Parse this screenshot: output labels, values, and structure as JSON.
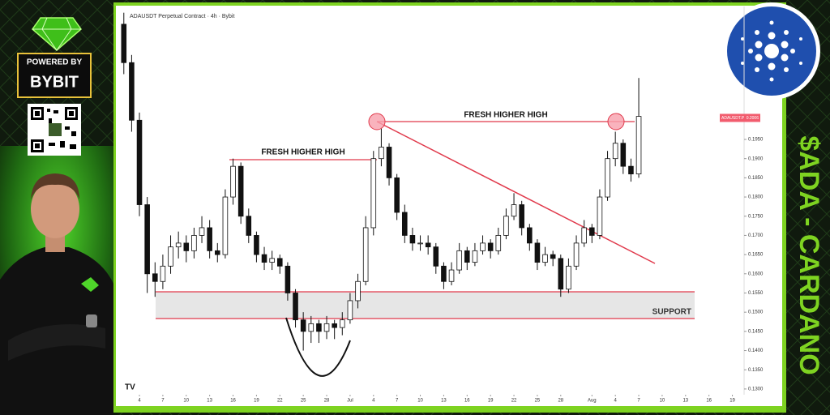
{
  "branding": {
    "powered_by": "POWERED BY",
    "brand": "BYBIT",
    "side_title": "$ADA - CARDANO"
  },
  "chart_data": {
    "type": "candlestick",
    "title": "ADAUSDT Perpetual Contract · 4h · Bybit",
    "color_up": "#ffffff",
    "color_down": "#111111",
    "annotations": [
      "FRESH HIGHER HIGH",
      "FRESH HIGHER HIGH",
      "SUPPORT"
    ],
    "price_tag": {
      "symbol": "ADAUSDT.P",
      "price": {
        "value": 0.2006,
        "label": "0.2006"
      }
    },
    "x": [
      1,
      2,
      3,
      4,
      5,
      6,
      7,
      8,
      9,
      10,
      11,
      12,
      13,
      14,
      15,
      16,
      17,
      18,
      19,
      20,
      21,
      22,
      23,
      24,
      25,
      26,
      27,
      28,
      29,
      30,
      31,
      32,
      33,
      34,
      35,
      36,
      37,
      38,
      39,
      40,
      41,
      42,
      43,
      44,
      45,
      46,
      47,
      48,
      49,
      50,
      51,
      52,
      53,
      54,
      55,
      56,
      57,
      58,
      59,
      60,
      61,
      62,
      63,
      64,
      65,
      66,
      67
    ],
    "open": [
      0.225,
      0.215,
      0.2,
      0.178,
      0.16,
      0.158,
      0.162,
      0.167,
      0.168,
      0.166,
      0.17,
      0.172,
      0.166,
      0.165,
      0.18,
      0.188,
      0.175,
      0.17,
      0.165,
      0.163,
      0.164,
      0.162,
      0.155,
      0.148,
      0.145,
      0.147,
      0.145,
      0.147,
      0.146,
      0.148,
      0.153,
      0.158,
      0.172,
      0.19,
      0.193,
      0.185,
      0.176,
      0.17,
      0.168,
      0.168,
      0.167,
      0.162,
      0.158,
      0.161,
      0.166,
      0.163,
      0.166,
      0.168,
      0.166,
      0.17,
      0.175,
      0.178,
      0.172,
      0.168,
      0.163,
      0.165,
      0.164,
      0.156,
      0.162,
      0.168,
      0.172,
      0.17,
      0.18,
      0.19,
      0.194,
      0.188,
      0.186
    ],
    "high": [
      0.228,
      0.217,
      0.202,
      0.18,
      0.163,
      0.165,
      0.17,
      0.171,
      0.17,
      0.172,
      0.175,
      0.174,
      0.168,
      0.182,
      0.19,
      0.189,
      0.177,
      0.171,
      0.167,
      0.166,
      0.165,
      0.163,
      0.156,
      0.15,
      0.149,
      0.148,
      0.149,
      0.148,
      0.15,
      0.155,
      0.16,
      0.175,
      0.192,
      0.198,
      0.194,
      0.186,
      0.178,
      0.172,
      0.17,
      0.17,
      0.168,
      0.163,
      0.163,
      0.168,
      0.167,
      0.168,
      0.17,
      0.169,
      0.172,
      0.177,
      0.181,
      0.179,
      0.173,
      0.169,
      0.167,
      0.166,
      0.165,
      0.164,
      0.17,
      0.174,
      0.173,
      0.182,
      0.192,
      0.197,
      0.195,
      0.19,
      0.211
    ],
    "low": [
      0.212,
      0.197,
      0.175,
      0.155,
      0.154,
      0.156,
      0.16,
      0.164,
      0.163,
      0.164,
      0.168,
      0.164,
      0.163,
      0.164,
      0.178,
      0.173,
      0.168,
      0.163,
      0.161,
      0.161,
      0.16,
      0.153,
      0.146,
      0.14,
      0.142,
      0.142,
      0.143,
      0.143,
      0.144,
      0.147,
      0.151,
      0.157,
      0.17,
      0.188,
      0.183,
      0.174,
      0.168,
      0.166,
      0.166,
      0.165,
      0.16,
      0.156,
      0.157,
      0.16,
      0.161,
      0.162,
      0.165,
      0.164,
      0.165,
      0.169,
      0.174,
      0.17,
      0.166,
      0.161,
      0.162,
      0.162,
      0.154,
      0.155,
      0.161,
      0.167,
      0.168,
      0.169,
      0.179,
      0.188,
      0.186,
      0.184,
      0.185
    ],
    "close": [
      0.215,
      0.2,
      0.178,
      0.16,
      0.158,
      0.162,
      0.167,
      0.168,
      0.166,
      0.17,
      0.172,
      0.166,
      0.165,
      0.18,
      0.188,
      0.175,
      0.17,
      0.165,
      0.163,
      0.164,
      0.162,
      0.155,
      0.148,
      0.145,
      0.147,
      0.145,
      0.147,
      0.146,
      0.148,
      0.153,
      0.158,
      0.172,
      0.19,
      0.193,
      0.185,
      0.176,
      0.17,
      0.168,
      0.168,
      0.167,
      0.162,
      0.158,
      0.161,
      0.166,
      0.163,
      0.166,
      0.168,
      0.166,
      0.17,
      0.175,
      0.178,
      0.172,
      0.168,
      0.163,
      0.165,
      0.164,
      0.156,
      0.162,
      0.168,
      0.172,
      0.17,
      0.18,
      0.19,
      0.194,
      0.188,
      0.186,
      0.201
    ],
    "xlim": [
      0.4,
      80.5
    ],
    "xticks": [
      {
        "value": 3,
        "label": "4"
      },
      {
        "value": 6,
        "label": "7"
      },
      {
        "value": 9,
        "label": "10"
      },
      {
        "value": 12,
        "label": "13"
      },
      {
        "value": 15,
        "label": "16"
      },
      {
        "value": 18,
        "label": "19"
      },
      {
        "value": 21,
        "label": "22"
      },
      {
        "value": 24,
        "label": "25"
      },
      {
        "value": 27,
        "label": "28"
      },
      {
        "value": 30,
        "label": "Jul"
      },
      {
        "value": 33,
        "label": "4"
      },
      {
        "value": 36,
        "label": "7"
      },
      {
        "value": 39,
        "label": "10"
      },
      {
        "value": 42,
        "label": "13"
      },
      {
        "value": 45,
        "label": "16"
      },
      {
        "value": 48,
        "label": "19"
      },
      {
        "value": 51,
        "label": "22"
      },
      {
        "value": 54,
        "label": "25"
      },
      {
        "value": 57,
        "label": "28"
      },
      {
        "value": 61,
        "label": "Aug"
      },
      {
        "value": 64,
        "label": "4"
      },
      {
        "value": 67,
        "label": "7"
      },
      {
        "value": 70,
        "label": "10"
      },
      {
        "value": 73,
        "label": "13"
      },
      {
        "value": 76,
        "label": "16"
      },
      {
        "value": 79,
        "label": "19"
      }
    ],
    "ylim": [
      0.1285,
      0.2292
    ],
    "yticks": [
      {
        "value": 0.13,
        "label": "0.1300"
      },
      {
        "value": 0.135,
        "label": "0.1350"
      },
      {
        "value": 0.14,
        "label": "0.1400"
      },
      {
        "value": 0.145,
        "label": "0.1450"
      },
      {
        "value": 0.15,
        "label": "0.1500"
      },
      {
        "value": 0.155,
        "label": "0.1550"
      },
      {
        "value": 0.16,
        "label": "0.1600"
      },
      {
        "value": 0.165,
        "label": "0.1650"
      },
      {
        "value": 0.17,
        "label": "0.1700"
      },
      {
        "value": 0.175,
        "label": "0.1750"
      },
      {
        "value": 0.18,
        "label": "0.1800"
      },
      {
        "value": 0.185,
        "label": "0.1850"
      },
      {
        "value": 0.19,
        "label": "0.1900"
      },
      {
        "value": 0.195,
        "label": "0.1950"
      }
    ]
  }
}
